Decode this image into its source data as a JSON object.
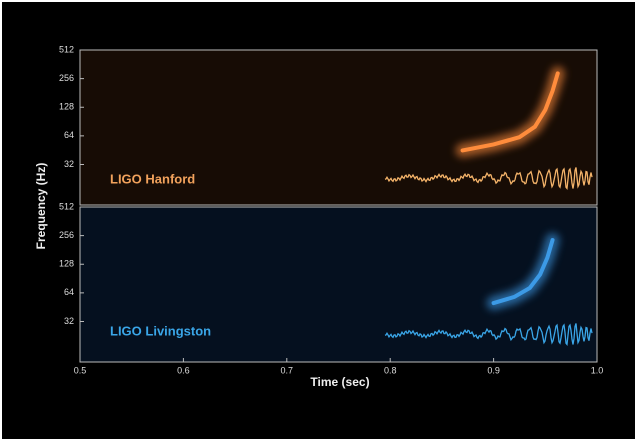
{
  "chart_data": [
    {
      "type": "line",
      "annotation": "LIGO Hanford",
      "annotation_color": "#f2a25c",
      "ylabel": "Frequency (Hz)",
      "log_y": true,
      "background": "#170c05",
      "xlim": [
        0.5,
        1.0
      ],
      "ylim": [
        12,
        512
      ],
      "yticks": [
        32,
        64,
        128,
        256,
        512
      ],
      "series": [
        {
          "color": "#ff8c3c",
          "x": [
            0.87,
            0.9,
            0.925,
            0.94,
            0.95,
            0.957,
            0.962
          ],
          "values": [
            45,
            52,
            62,
            80,
            120,
            190,
            290
          ]
        }
      ]
    },
    {
      "type": "line",
      "annotation": "LIGO Livingston",
      "annotation_color": "#3aa6e8",
      "xlabel": "Time (sec)",
      "log_y": true,
      "background": "#05101f",
      "xlim": [
        0.5,
        1.0
      ],
      "ylim": [
        12,
        512
      ],
      "yticks": [
        32,
        64,
        128,
        256,
        512
      ],
      "xticks": [
        0.5,
        0.6,
        0.7,
        0.8,
        0.9,
        {
          "value": 1,
          "label": "1.0"
        }
      ],
      "series": [
        {
          "color": "#3c9ae6",
          "x": [
            0.9,
            0.92,
            0.935,
            0.945,
            0.952,
            0.957
          ],
          "values": [
            50,
            58,
            72,
            100,
            150,
            230
          ]
        }
      ]
    }
  ]
}
